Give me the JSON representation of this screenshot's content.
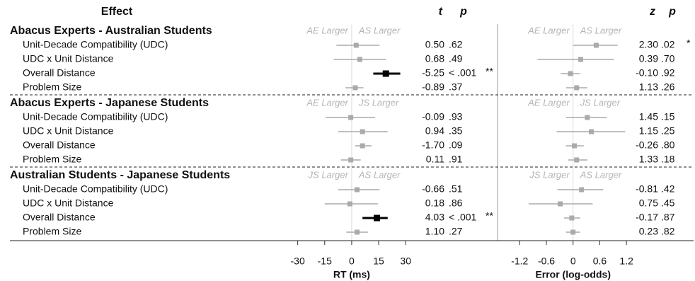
{
  "chart_data": {
    "type": "forest",
    "effect_header": "Effect",
    "panels": [
      {
        "axis_label": "RT (ms)",
        "stat_header": "t",
        "p_header": "p",
        "xlim": [
          -33,
          37
        ],
        "xticks": [
          -30,
          -15,
          0,
          15,
          30
        ]
      },
      {
        "axis_label": "Error (log-odds)",
        "stat_header": "z",
        "p_header": "p",
        "xlim": [
          -1.65,
          1.5
        ],
        "xticks": [
          -1.2,
          -0.6,
          0,
          0.6,
          1.2
        ]
      }
    ],
    "groups": [
      {
        "name": "Abacus Experts - Australian Students",
        "directions": [
          [
            "AE Larger",
            "AS Larger"
          ],
          [
            "AE Larger",
            "AS Larger"
          ]
        ],
        "rows": [
          {
            "label": "Unit-Decade Compatibility (UDC)",
            "panels": [
              {
                "estimate": 2.5,
                "ci": [
                  -8.5,
                  15.5
                ],
                "stat": 0.5,
                "stat_label": "0.50",
                "p": 0.62,
                "p_label": ".62",
                "color": "#aaaaaa"
              },
              {
                "estimate": 0.52,
                "ci": [
                  0,
                  1.0
                ],
                "stat": 2.3,
                "stat_label": "2.30",
                "p": 0.02,
                "p_label": ".02",
                "sig": "*",
                "color": "#aaaaaa"
              }
            ]
          },
          {
            "label": "UDC x Unit Distance",
            "panels": [
              {
                "estimate": 4.5,
                "ci": [
                  -10,
                  19
                ],
                "stat": 0.68,
                "stat_label": "0.68",
                "p": 0.49,
                "p_label": ".49",
                "color": "#aaaaaa"
              },
              {
                "estimate": 0.17,
                "ci": [
                  -0.8,
                  0.92
                ],
                "stat": 0.39,
                "stat_label": "0.39",
                "p": 0.7,
                "p_label": ".70",
                "color": "#aaaaaa"
              }
            ]
          },
          {
            "label": "Overall Distance",
            "panels": [
              {
                "estimate": 19,
                "ci": [
                  12,
                  27
                ],
                "stat": -5.25,
                "stat_label": "-5.25",
                "p": 0.001,
                "p_label": "< .001",
                "sig": "**",
                "color": "#000000"
              },
              {
                "estimate": -0.06,
                "ci": [
                  -0.28,
                  0.16
                ],
                "stat": -0.1,
                "stat_label": "-0.10",
                "p": 0.92,
                "p_label": ".92",
                "color": "#aaaaaa"
              }
            ]
          },
          {
            "label": "Problem Size",
            "panels": [
              {
                "estimate": 2,
                "ci": [
                  -3.5,
                  6.5
                ],
                "stat": -0.89,
                "stat_label": "-0.89",
                "p": 0.37,
                "p_label": ".37",
                "color": "#aaaaaa"
              },
              {
                "estimate": 0.08,
                "ci": [
                  -0.16,
                  0.32
                ],
                "stat": 1.13,
                "stat_label": "1.13",
                "p": 0.26,
                "p_label": ".26",
                "color": "#aaaaaa"
              }
            ]
          }
        ]
      },
      {
        "name": "Abacus Experts - Japanese Students",
        "directions": [
          [
            "AE Larger",
            "JS Larger"
          ],
          [
            "AE Larger",
            "JS Larger"
          ]
        ],
        "rows": [
          {
            "label": "Unit-Decade Compatibility (UDC)",
            "panels": [
              {
                "estimate": -0.5,
                "ci": [
                  -14.5,
                  13
                ],
                "stat": -0.09,
                "stat_label": "-0.09",
                "p": 0.93,
                "p_label": ".93",
                "color": "#aaaaaa"
              },
              {
                "estimate": 0.32,
                "ci": [
                  -0.16,
                  0.76
                ],
                "stat": 1.45,
                "stat_label": "1.45",
                "p": 0.15,
                "p_label": ".15",
                "color": "#aaaaaa"
              }
            ]
          },
          {
            "label": "UDC x Unit Distance",
            "panels": [
              {
                "estimate": 6,
                "ci": [
                  -7.5,
                  20
                ],
                "stat": 0.94,
                "stat_label": "0.94",
                "p": 0.35,
                "p_label": ".35",
                "color": "#aaaaaa"
              },
              {
                "estimate": 0.41,
                "ci": [
                  -0.37,
                  1.17
                ],
                "stat": 1.15,
                "stat_label": "1.15",
                "p": 0.25,
                "p_label": ".25",
                "color": "#aaaaaa"
              }
            ]
          },
          {
            "label": "Overall Distance",
            "panels": [
              {
                "estimate": 6,
                "ci": [
                  2,
                  11
                ],
                "stat": -1.7,
                "stat_label": "-1.70",
                "p": 0.09,
                "p_label": ".09",
                "color": "#aaaaaa"
              },
              {
                "estimate": 0.03,
                "ci": [
                  -0.16,
                  0.24
                ],
                "stat": -0.26,
                "stat_label": "-0.26",
                "p": 0.8,
                "p_label": ".80",
                "color": "#aaaaaa"
              }
            ]
          },
          {
            "label": "Problem Size",
            "panels": [
              {
                "estimate": -0.5,
                "ci": [
                  -6,
                  5
                ],
                "stat": 0.11,
                "stat_label": "0.11",
                "p": 0.91,
                "p_label": ".91",
                "color": "#aaaaaa"
              },
              {
                "estimate": 0.08,
                "ci": [
                  -0.11,
                  0.32
                ],
                "stat": 1.33,
                "stat_label": "1.33",
                "p": 0.18,
                "p_label": ".18",
                "color": "#aaaaaa"
              }
            ]
          }
        ]
      },
      {
        "name": "Australian Students - Japanese Students",
        "directions": [
          [
            "JS Larger",
            "AS Larger"
          ],
          [
            "JS Larger",
            "AS Larger"
          ]
        ],
        "rows": [
          {
            "label": "Unit-Decade Compatibility (UDC)",
            "panels": [
              {
                "estimate": 3,
                "ci": [
                  -7.5,
                  15.5
                ],
                "stat": -0.66,
                "stat_label": "-0.66",
                "p": 0.51,
                "p_label": ".51",
                "color": "#aaaaaa"
              },
              {
                "estimate": 0.19,
                "ci": [
                  -0.35,
                  0.68
                ],
                "stat": -0.81,
                "stat_label": "-0.81",
                "p": 0.42,
                "p_label": ".42",
                "color": "#aaaaaa"
              }
            ]
          },
          {
            "label": "UDC x Unit Distance",
            "panels": [
              {
                "estimate": -1,
                "ci": [
                  -15,
                  14.5
                ],
                "stat": 0.18,
                "stat_label": "0.18",
                "p": 0.86,
                "p_label": ".86",
                "color": "#aaaaaa"
              },
              {
                "estimate": -0.29,
                "ci": [
                  -1.0,
                  0.44
                ],
                "stat": 0.75,
                "stat_label": "0.75",
                "p": 0.45,
                "p_label": ".45",
                "color": "#aaaaaa"
              }
            ]
          },
          {
            "label": "Overall Distance",
            "panels": [
              {
                "estimate": 14,
                "ci": [
                  6,
                  20
                ],
                "stat": 4.03,
                "stat_label": "4.03",
                "p": 0.001,
                "p_label": "< .001",
                "sig": "**",
                "color": "#000000"
              },
              {
                "estimate": -0.03,
                "ci": [
                  -0.2,
                  0.16
                ],
                "stat": -0.17,
                "stat_label": "-0.17",
                "p": 0.87,
                "p_label": ".87",
                "color": "#aaaaaa"
              }
            ]
          },
          {
            "label": "Problem Size",
            "panels": [
              {
                "estimate": 3,
                "ci": [
                  -3,
                  9
                ],
                "stat": 1.1,
                "stat_label": "1.10",
                "p": 0.27,
                "p_label": ".27",
                "color": "#aaaaaa"
              },
              {
                "estimate": 0,
                "ci": [
                  -0.16,
                  0.16
                ],
                "stat": 0.23,
                "stat_label": "0.23",
                "p": 0.82,
                "p_label": ".82",
                "color": "#aaaaaa"
              }
            ]
          }
        ]
      }
    ]
  }
}
